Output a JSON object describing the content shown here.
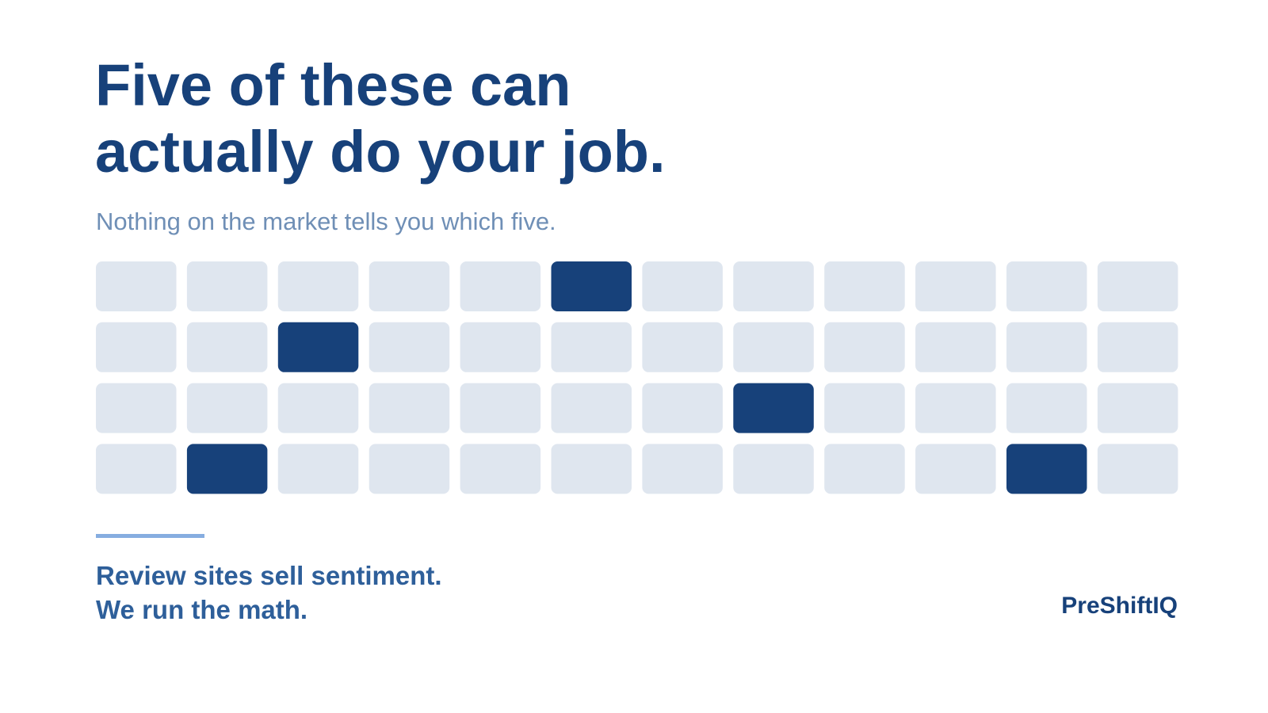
{
  "header": {
    "title_lines": [
      "Five of these can",
      "actually do your job."
    ],
    "subtitle": "Nothing on the market tells you which five."
  },
  "footer": {
    "tagline_lines": [
      "Review sites sell sentiment.",
      "We run the math."
    ],
    "brand": "PreShiftIQ"
  }
}
